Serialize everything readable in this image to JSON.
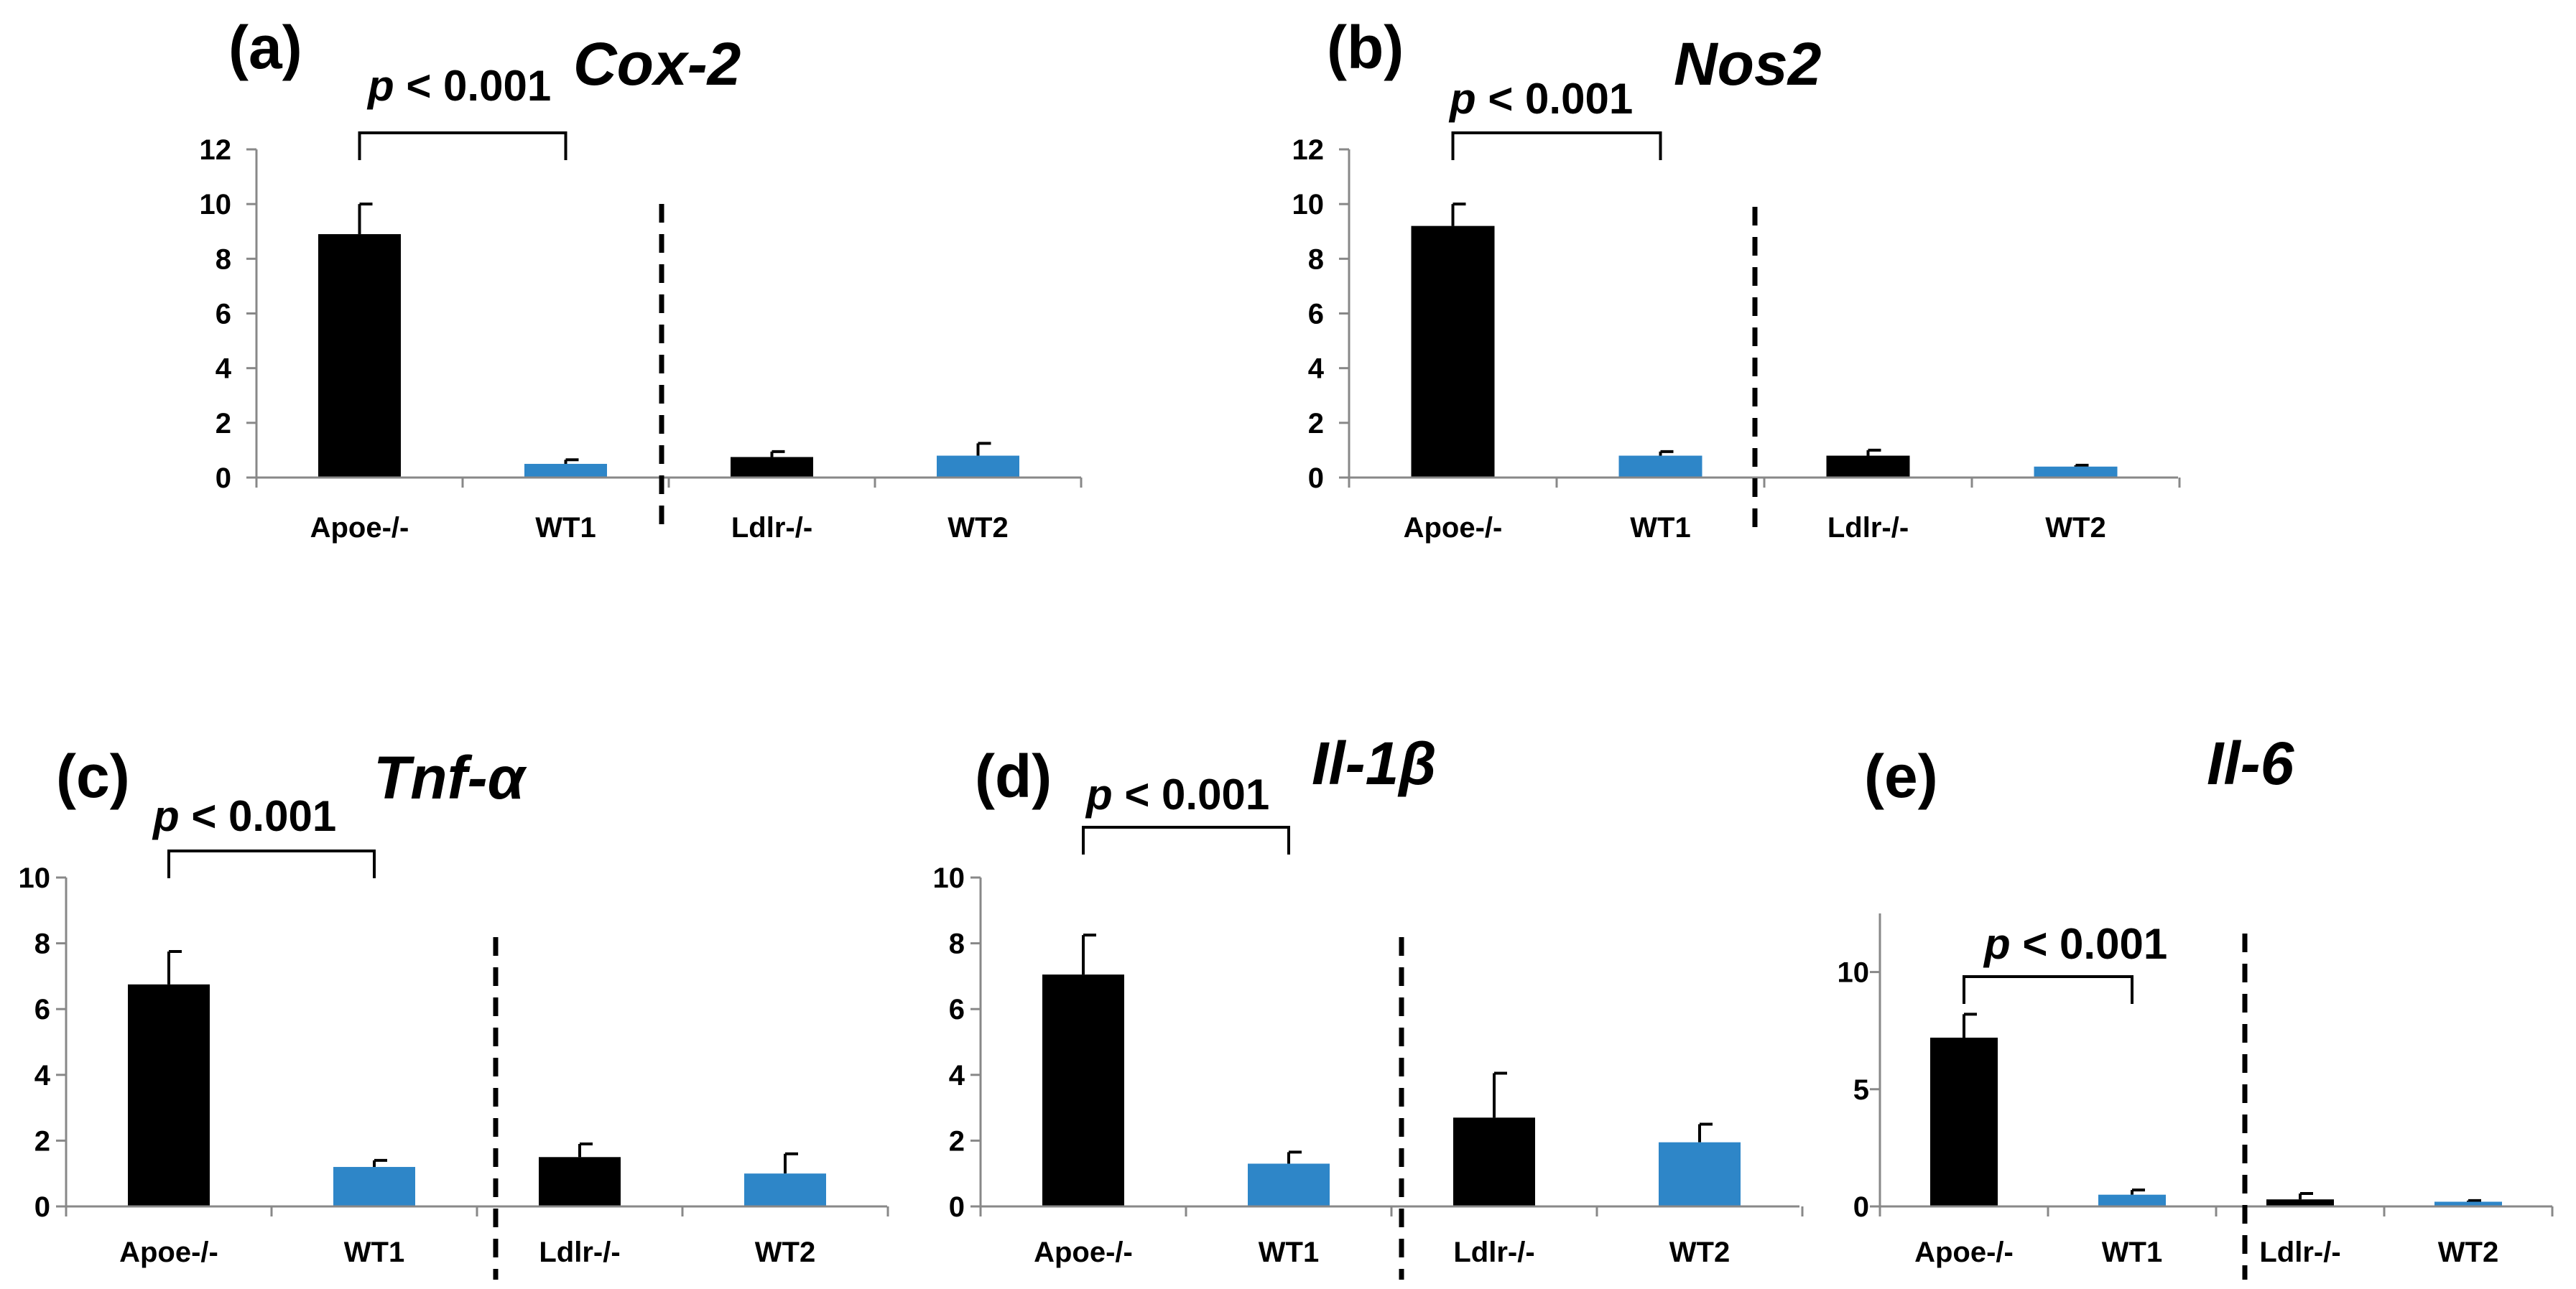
{
  "colors": {
    "knockout": "#000000",
    "wildtype": "#2E86C8",
    "axis": "#888888",
    "bracket": "#000000"
  },
  "chart_data": [
    {
      "type": "bar",
      "panel": "(a)",
      "title": "Cox-2",
      "categories": [
        "Apoe-/-",
        "WT1",
        "Ldlr-/-",
        "WT2"
      ],
      "values": [
        8.9,
        0.5,
        0.75,
        0.8
      ],
      "errors": [
        1.1,
        0.15,
        0.2,
        0.45
      ],
      "bar_colors": [
        "knockout",
        "wildtype",
        "knockout",
        "wildtype"
      ],
      "ylim": [
        0,
        12
      ],
      "yticks": [
        "0",
        "2",
        "4",
        "6",
        "8",
        "10",
        "12"
      ],
      "ytick_values": [
        0,
        2,
        4,
        6,
        8,
        10,
        12
      ],
      "p_prefix": "p",
      "p_text": " < 0.001",
      "p_between": [
        0,
        1
      ],
      "divider_after": 1
    },
    {
      "type": "bar",
      "panel": "(b)",
      "title": "Nos2",
      "categories": [
        "Apoe-/-",
        "WT1",
        "Ldlr-/-",
        "WT2"
      ],
      "values": [
        9.2,
        0.8,
        0.8,
        0.4
      ],
      "errors": [
        0.8,
        0.15,
        0.2,
        0.05
      ],
      "bar_colors": [
        "knockout",
        "wildtype",
        "knockout",
        "wildtype"
      ],
      "ylim": [
        0,
        12
      ],
      "yticks": [
        "0",
        "2",
        "4",
        "6",
        "8",
        "10",
        "12"
      ],
      "ytick_values": [
        0,
        2,
        4,
        6,
        8,
        10,
        12
      ],
      "p_prefix": "p",
      "p_text": " < 0.001",
      "p_between": [
        0,
        1
      ],
      "divider_after": 1
    },
    {
      "type": "bar",
      "panel": "(c)",
      "title": "Tnf-α",
      "categories": [
        "Apoe-/-",
        "WT1",
        "Ldlr-/-",
        "WT2"
      ],
      "values": [
        6.75,
        1.2,
        1.5,
        1.0
      ],
      "errors": [
        1.0,
        0.2,
        0.4,
        0.6
      ],
      "bar_colors": [
        "knockout",
        "wildtype",
        "knockout",
        "wildtype"
      ],
      "ylim": [
        0,
        10
      ],
      "yticks": [
        "0",
        "2",
        "4",
        "6",
        "8",
        "10"
      ],
      "ytick_values": [
        0,
        2,
        4,
        6,
        8,
        10
      ],
      "p_prefix": "p",
      "p_text": " < 0.001",
      "p_between": [
        0,
        1
      ],
      "divider_after": 1
    },
    {
      "type": "bar",
      "panel": "(d)",
      "title": "Il-1β",
      "categories": [
        "Apoe-/-",
        "WT1",
        "Ldlr-/-",
        "WT2"
      ],
      "values": [
        7.05,
        1.3,
        2.7,
        1.95
      ],
      "errors": [
        1.2,
        0.35,
        1.35,
        0.55
      ],
      "bar_colors": [
        "knockout",
        "wildtype",
        "knockout",
        "wildtype"
      ],
      "ylim": [
        0,
        10
      ],
      "yticks": [
        "0",
        "2",
        "4",
        "6",
        "8",
        "10"
      ],
      "ytick_values": [
        0,
        2,
        4,
        6,
        8,
        10
      ],
      "p_prefix": "p",
      "p_text": " < 0.001",
      "p_between": [
        0,
        1
      ],
      "divider_after": 1
    },
    {
      "type": "bar",
      "panel": "(e)",
      "title": "Il-6",
      "categories": [
        "Apoe-/-",
        "WT1",
        "Ldlr-/-",
        "WT2"
      ],
      "values": [
        7.2,
        0.5,
        0.3,
        0.2
      ],
      "errors": [
        1.0,
        0.2,
        0.25,
        0.05
      ],
      "bar_colors": [
        "knockout",
        "wildtype",
        "knockout",
        "wildtype"
      ],
      "ylim": [
        0,
        12.5
      ],
      "yticks": [
        "0",
        "5",
        "10"
      ],
      "ytick_values": [
        0,
        5,
        10
      ],
      "p_prefix": "p",
      "p_text": " < 0.001",
      "p_between": [
        0,
        1
      ],
      "divider_after": 1
    }
  ]
}
